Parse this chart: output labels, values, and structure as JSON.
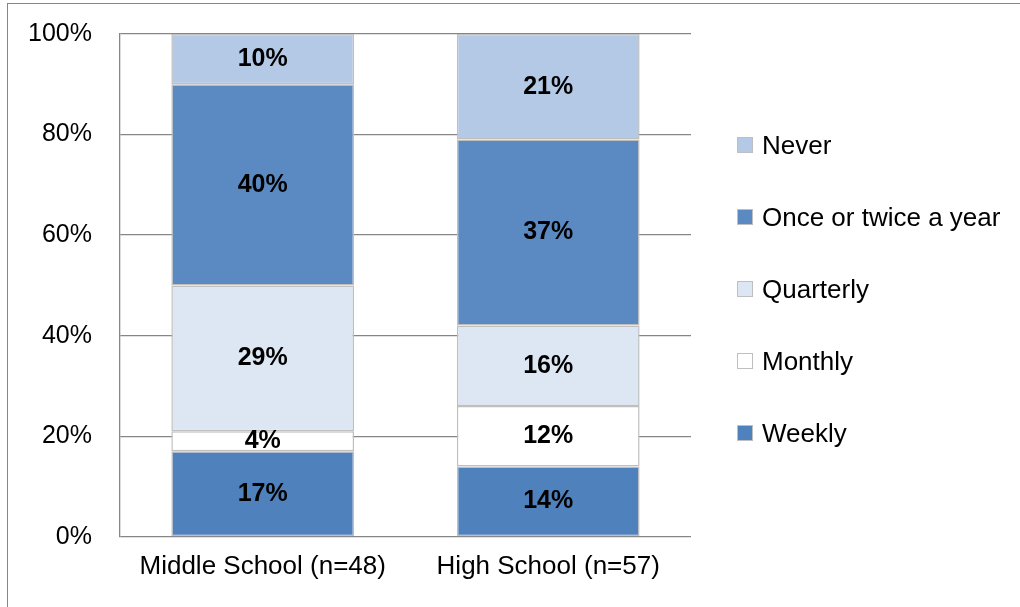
{
  "chart_data": {
    "type": "bar",
    "stacked": true,
    "categories": [
      "Middle School (n=48)",
      "High School (n=57)"
    ],
    "series": [
      {
        "name": "Weekly",
        "color": "#4f81bd",
        "values": [
          17,
          14
        ],
        "value_labels": [
          "17%",
          "14%"
        ]
      },
      {
        "name": "Monthly",
        "color": "#ffffff",
        "values": [
          4,
          12
        ],
        "value_labels": [
          "4%",
          "12%"
        ]
      },
      {
        "name": "Quarterly",
        "color": "#dde7f3",
        "values": [
          29,
          16
        ],
        "value_labels": [
          "29%",
          "16%"
        ]
      },
      {
        "name": "Once or twice a year",
        "color": "#5b8ac3",
        "values": [
          40,
          37
        ],
        "value_labels": [
          "40%",
          "37%"
        ]
      },
      {
        "name": "Never",
        "color": "#b4c9e6",
        "values": [
          10,
          21
        ],
        "value_labels": [
          "10%",
          "21%"
        ]
      }
    ],
    "ylim": [
      0,
      100
    ],
    "yticks": [
      {
        "value": 0,
        "label": "0%"
      },
      {
        "value": 20,
        "label": "20%"
      },
      {
        "value": 40,
        "label": "40%"
      },
      {
        "value": 60,
        "label": "60%"
      },
      {
        "value": 80,
        "label": "80%"
      },
      {
        "value": 100,
        "label": "100%"
      }
    ],
    "grid": "y",
    "legend": "right"
  }
}
